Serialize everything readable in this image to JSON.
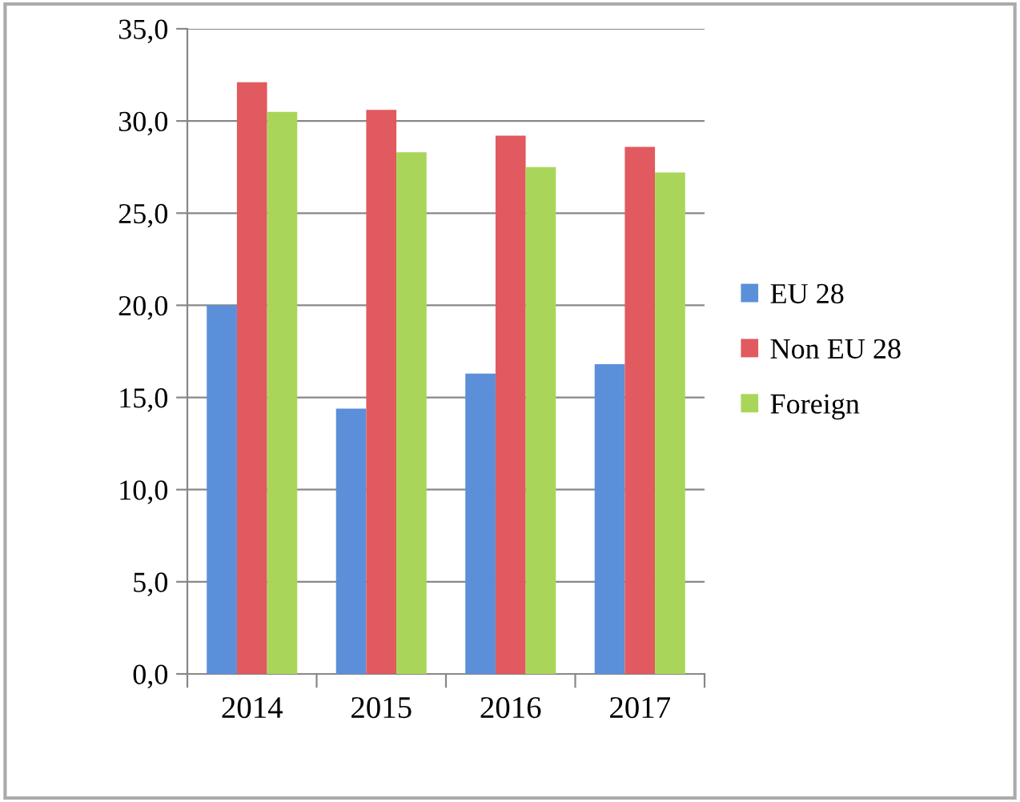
{
  "chart_data": {
    "type": "bar",
    "categories": [
      "2014",
      "2015",
      "2016",
      "2017"
    ],
    "series": [
      {
        "name": "EU 28",
        "color": "#5b8fd9",
        "values": [
          20.0,
          14.4,
          16.3,
          16.8
        ]
      },
      {
        "name": "Non EU 28",
        "color": "#e05a5f",
        "values": [
          32.1,
          30.6,
          29.2,
          28.6
        ]
      },
      {
        "name": "Foreign",
        "color": "#a9d65a",
        "values": [
          30.5,
          28.3,
          27.5,
          27.2
        ]
      }
    ],
    "ylim": [
      0,
      35
    ],
    "yticks": [
      {
        "value": 0,
        "label": "0,0"
      },
      {
        "value": 5,
        "label": "5,0"
      },
      {
        "value": 10,
        "label": "10,0"
      },
      {
        "value": 15,
        "label": "15,0"
      },
      {
        "value": 20,
        "label": "20,0"
      },
      {
        "value": 25,
        "label": "25,0"
      },
      {
        "value": 30,
        "label": "30,0"
      },
      {
        "value": 35,
        "label": "35,0"
      }
    ],
    "grid": "y",
    "legend": "right"
  }
}
